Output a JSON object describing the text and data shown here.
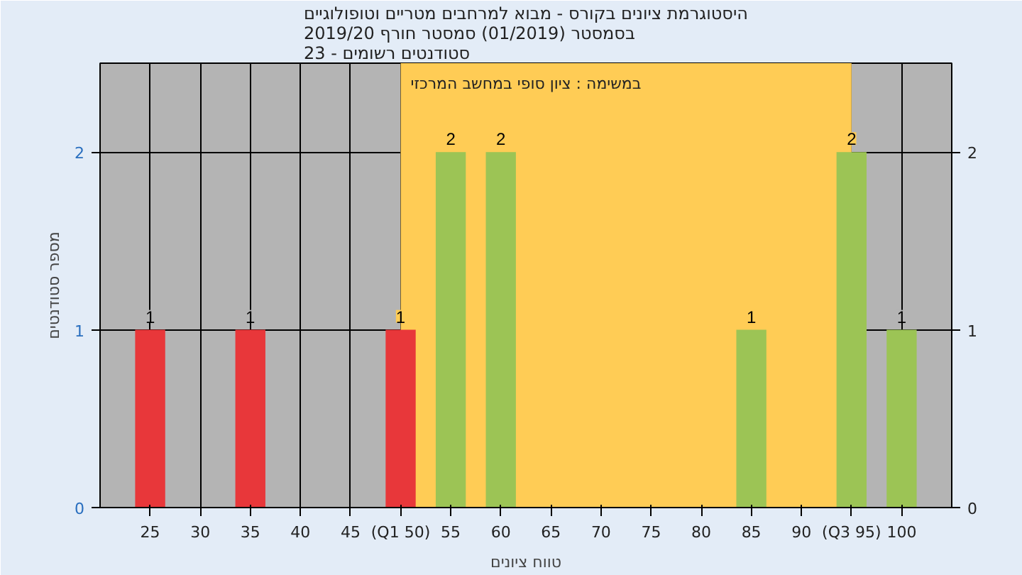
{
  "chart_data": {
    "type": "bar",
    "title": "היסטוגרמת ציונים בקורס - מבוא למרחבים מטריים וטופולוגיים\nבסמסטר  (01/2019)  סמסטר חורף 2019/20\nסטודנטים רשומים - 23",
    "annotations": [
      "במשימה : ציון סופי במחשב המרכזי"
    ],
    "xlabel": "טווח ציונים",
    "ylabel": "מספר סטודנטים",
    "x": [
      25,
      35,
      50,
      55,
      60,
      85,
      95,
      100
    ],
    "values": [
      1,
      1,
      1,
      2,
      2,
      1,
      2,
      1
    ],
    "colors": [
      "#e8373a",
      "#e8373a",
      "#e8373a",
      "#9cc455",
      "#9cc455",
      "#9cc455",
      "#9cc455",
      "#9cc455"
    ],
    "data_labels": true,
    "xlim": [
      20,
      105
    ],
    "xticks": [
      25,
      30,
      35,
      40,
      45,
      {
        "value": 50,
        "label": "(Q1 50)"
      },
      55,
      60,
      65,
      70,
      75,
      80,
      85,
      90,
      {
        "value": 95,
        "label": "(Q3 95)"
      },
      100
    ],
    "ylim": [
      0,
      2.5
    ],
    "yticks": [
      0,
      1,
      2
    ],
    "y2lim": [
      0,
      2.5
    ],
    "y2ticks": [
      0,
      1,
      2
    ],
    "bands": [
      {
        "axis": "x",
        "from": 50,
        "to": 95,
        "color": "#ffcc55"
      }
    ],
    "grid": true
  }
}
